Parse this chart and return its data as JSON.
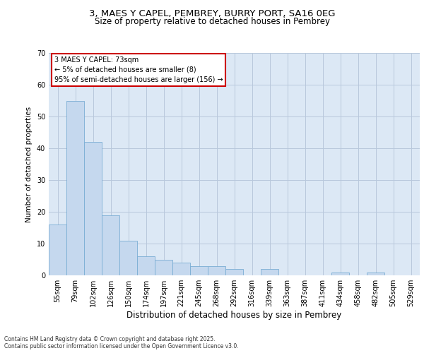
{
  "title_line1": "3, MAES Y CAPEL, PEMBREY, BURRY PORT, SA16 0EG",
  "title_line2": "Size of property relative to detached houses in Pembrey",
  "xlabel": "Distribution of detached houses by size in Pembrey",
  "ylabel": "Number of detached properties",
  "categories": [
    "55sqm",
    "79sqm",
    "102sqm",
    "126sqm",
    "150sqm",
    "174sqm",
    "197sqm",
    "221sqm",
    "245sqm",
    "268sqm",
    "292sqm",
    "316sqm",
    "339sqm",
    "363sqm",
    "387sqm",
    "411sqm",
    "434sqm",
    "458sqm",
    "482sqm",
    "505sqm",
    "529sqm"
  ],
  "values": [
    16,
    55,
    42,
    19,
    11,
    6,
    5,
    4,
    3,
    3,
    2,
    0,
    2,
    0,
    0,
    0,
    1,
    0,
    1,
    0,
    0
  ],
  "bar_color": "#c5d8ee",
  "bar_edge_color": "#7aadd4",
  "background_color": "#dce8f5",
  "grid_color": "#b8c8dc",
  "annotation_text": "3 MAES Y CAPEL: 73sqm\n← 5% of detached houses are smaller (8)\n95% of semi-detached houses are larger (156) →",
  "annotation_box_color": "#ffffff",
  "annotation_box_edge": "#cc0000",
  "footer_text": "Contains HM Land Registry data © Crown copyright and database right 2025.\nContains public sector information licensed under the Open Government Licence v3.0.",
  "ylim": [
    0,
    70
  ],
  "yticks": [
    0,
    10,
    20,
    30,
    40,
    50,
    60,
    70
  ],
  "title1_fontsize": 9.5,
  "title2_fontsize": 8.5,
  "ylabel_fontsize": 7.5,
  "xlabel_fontsize": 8.5,
  "tick_fontsize": 7.0,
  "annot_fontsize": 7.0,
  "footer_fontsize": 5.5
}
